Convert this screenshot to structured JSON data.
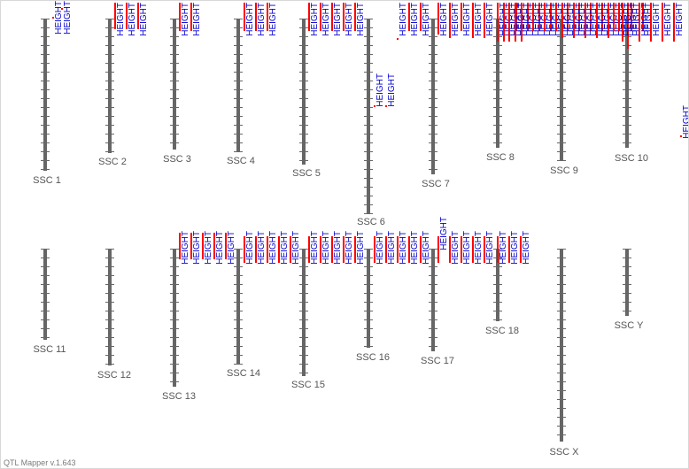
{
  "app": {
    "version_label": "QTL Mapper v.1.643"
  },
  "colors": {
    "chromosome": "#666666",
    "qtl_bar": "#ff0000",
    "qtl_label": "#0000cc",
    "chrom_label": "#555555"
  },
  "qtl_trait": "HEIGHT",
  "chromosomes": [
    {
      "label": "SSC 1",
      "qtl_count": 2
    },
    {
      "label": "SSC 2",
      "qtl_count": 3
    },
    {
      "label": "SSC 3",
      "qtl_count": 2
    },
    {
      "label": "SSC 4",
      "qtl_count": 3
    },
    {
      "label": "SSC 5",
      "qtl_count": 5
    },
    {
      "label": "SSC 6",
      "qtl_count": 5
    },
    {
      "label": "SSC 7",
      "qtl_count": 9
    },
    {
      "label": "SSC 8",
      "qtl_count": 12
    },
    {
      "label": "SSC 9",
      "qtl_count": 9
    },
    {
      "label": "SSC 10",
      "qtl_count": 7
    },
    {
      "label": "SSC 11",
      "qtl_count": 0
    },
    {
      "label": "SSC 12",
      "qtl_count": 0
    },
    {
      "label": "SSC 13",
      "qtl_count": 5
    },
    {
      "label": "SSC 14",
      "qtl_count": 5
    },
    {
      "label": "SSC 15",
      "qtl_count": 5
    },
    {
      "label": "SSC 16",
      "qtl_count": 5
    },
    {
      "label": "SSC 17",
      "qtl_count": 5
    },
    {
      "label": "SSC 18",
      "qtl_count": 3
    },
    {
      "label": "SSC X",
      "qtl_count": 0
    },
    {
      "label": "SSC Y",
      "qtl_count": 0
    }
  ]
}
